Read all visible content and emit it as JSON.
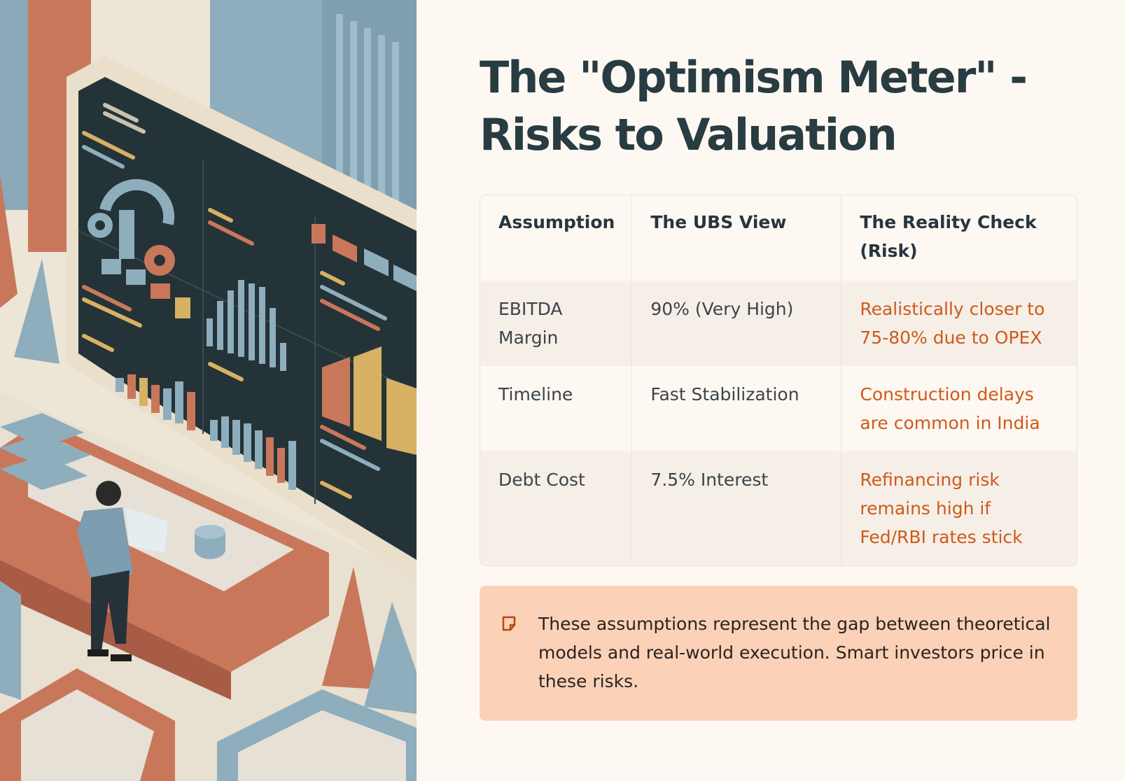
{
  "title": "The \"Optimism Meter\" - Risks to Valuation",
  "table": {
    "headers": [
      "Assumption",
      "The UBS View",
      "The Reality Check (Risk)"
    ],
    "rows": [
      {
        "assumption": "EBITDA Margin",
        "ubs_view": "90% (Very High)",
        "reality_check": "Realistically closer to 75-80% due to OPEX"
      },
      {
        "assumption": "Timeline",
        "ubs_view": "Fast Stabilization",
        "reality_check": "Construction delays are common in India"
      },
      {
        "assumption": "Debt Cost",
        "ubs_view": "7.5% Interest",
        "reality_check": "Refinancing risk remains high if Fed/RBI rates stick"
      }
    ]
  },
  "callout": {
    "icon": "note-icon",
    "text": "These assumptions represent the gap between theoretical models and real-world execution. Smart investors price in these risks."
  },
  "colors": {
    "title": "#283c42",
    "risk_text": "#cf5a1a",
    "callout_bg": "#fbd2b8",
    "page_bg": "#fef8f2"
  }
}
